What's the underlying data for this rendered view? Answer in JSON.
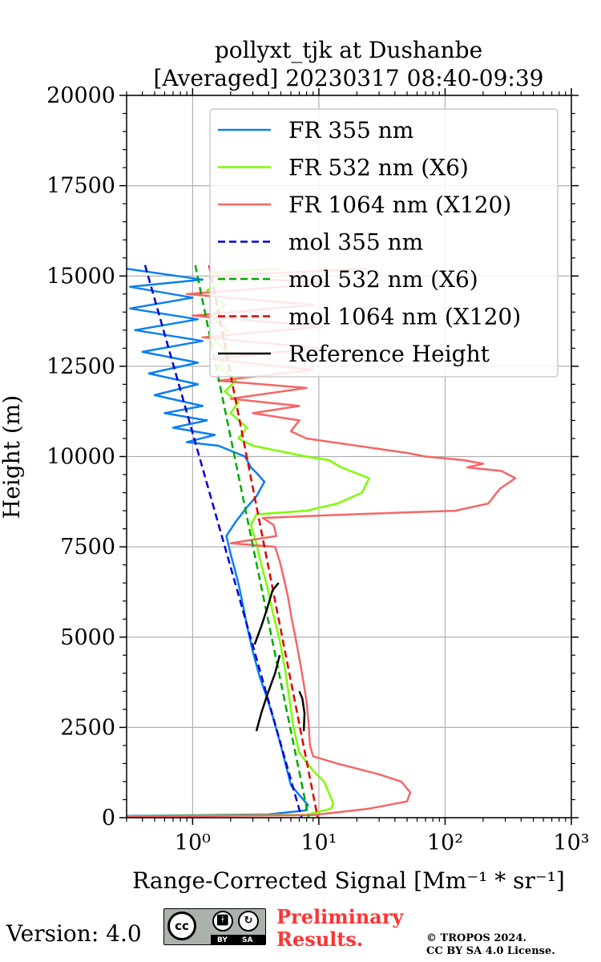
{
  "chart_data": {
    "type": "line",
    "title": [
      "pollyxt_tjk at Dushanbe",
      "[Averaged] 20230317 08:40-09:39"
    ],
    "xlabel": "Range-Corrected Signal [Mm⁻¹ * sr⁻¹]",
    "ylabel": "Height (m)",
    "xscale": "log",
    "xlim": [
      0.3,
      1000
    ],
    "ylim": [
      0,
      20000
    ],
    "xticks": [
      1,
      10,
      100,
      1000
    ],
    "xtick_labels": [
      "10⁰",
      "10¹",
      "10²",
      "10³"
    ],
    "yticks": [
      0,
      2500,
      5000,
      7500,
      10000,
      12500,
      15000,
      17500,
      20000
    ],
    "ytick_labels": [
      "0",
      "2500",
      "5000",
      "7500",
      "10000",
      "12500",
      "15000",
      "17500",
      "20000"
    ],
    "grid": true,
    "legend_position": "top-right",
    "series": [
      {
        "name": "FR 355 nm",
        "color": "#0a7ff0",
        "style": "solid",
        "points": [
          [
            0.3,
            50
          ],
          [
            4,
            90
          ],
          [
            7.8,
            200
          ],
          [
            8.2,
            350
          ],
          [
            6,
            900
          ],
          [
            5,
            2000
          ],
          [
            4.4,
            2700
          ],
          [
            3.9,
            3300
          ],
          [
            3.4,
            3900
          ],
          [
            3,
            4600
          ],
          [
            2.7,
            5300
          ],
          [
            2.5,
            5900
          ],
          [
            2.3,
            6500
          ],
          [
            2.15,
            6900
          ],
          [
            2,
            7300
          ],
          [
            1.85,
            7800
          ],
          [
            2.2,
            8200
          ],
          [
            2.7,
            8600
          ],
          [
            3.2,
            8900
          ],
          [
            3.7,
            9300
          ],
          [
            3.3,
            9500
          ],
          [
            2.9,
            9700
          ],
          [
            2.6,
            10000
          ],
          [
            1.6,
            10300
          ],
          [
            0.9,
            10400
          ],
          [
            1.5,
            10600
          ],
          [
            0.7,
            10800
          ],
          [
            1.3,
            11000
          ],
          [
            0.6,
            11200
          ],
          [
            1.2,
            11400
          ],
          [
            0.5,
            11700
          ],
          [
            1.1,
            12000
          ],
          [
            0.45,
            12300
          ],
          [
            1.1,
            12600
          ],
          [
            0.4,
            12900
          ],
          [
            1.2,
            13200
          ],
          [
            0.35,
            13500
          ],
          [
            1.1,
            13800
          ],
          [
            0.32,
            14100
          ],
          [
            1.0,
            14400
          ],
          [
            0.32,
            14700
          ],
          [
            1.2,
            14900
          ],
          [
            0.3,
            15200
          ]
        ]
      },
      {
        "name": "FR 532 nm (X6)",
        "color": "#7cfc00",
        "style": "solid",
        "points": [
          [
            0.3,
            40
          ],
          [
            8,
            80
          ],
          [
            12.5,
            250
          ],
          [
            13,
            400
          ],
          [
            11,
            1000
          ],
          [
            9,
            1300
          ],
          [
            7,
            1800
          ],
          [
            6.3,
            2500
          ],
          [
            5.9,
            3200
          ],
          [
            5.4,
            4100
          ],
          [
            4.9,
            4900
          ],
          [
            4.3,
            5700
          ],
          [
            3.9,
            6400
          ],
          [
            3.5,
            7000
          ],
          [
            3.2,
            7600
          ],
          [
            2.9,
            8100
          ],
          [
            3.2,
            8400
          ],
          [
            8,
            8500
          ],
          [
            14,
            8700
          ],
          [
            22,
            9000
          ],
          [
            25,
            9400
          ],
          [
            15,
            9700
          ],
          [
            12,
            9900
          ],
          [
            8,
            10000
          ],
          [
            3,
            10300
          ],
          [
            2.3,
            10500
          ],
          [
            2.7,
            10800
          ],
          [
            2.0,
            11200
          ],
          [
            2.3,
            11500
          ],
          [
            1.8,
            11800
          ],
          [
            2.2,
            12100
          ],
          [
            1.6,
            12500
          ],
          [
            2.0,
            12800
          ],
          [
            1.5,
            13200
          ],
          [
            1.9,
            13500
          ],
          [
            1.4,
            13900
          ],
          [
            1.8,
            14200
          ],
          [
            1.3,
            14600
          ],
          [
            1.8,
            14900
          ],
          [
            1.4,
            15100
          ],
          [
            5,
            15200
          ]
        ]
      },
      {
        "name": "FR 1064 nm (X120)",
        "color": "#f56666",
        "style": "solid",
        "points": [
          [
            0.3,
            30
          ],
          [
            9,
            70
          ],
          [
            25,
            250
          ],
          [
            50,
            450
          ],
          [
            53,
            700
          ],
          [
            45,
            1000
          ],
          [
            30,
            1200
          ],
          [
            14,
            1500
          ],
          [
            9,
            1700
          ],
          [
            8.5,
            2000
          ],
          [
            8.3,
            2600
          ],
          [
            8,
            3200
          ],
          [
            7.6,
            3700
          ],
          [
            7.1,
            4300
          ],
          [
            6.6,
            4900
          ],
          [
            6.1,
            5500
          ],
          [
            5.7,
            6100
          ],
          [
            5.3,
            6600
          ],
          [
            4.9,
            7100
          ],
          [
            4.5,
            7500
          ],
          [
            2,
            7600
          ],
          [
            4.6,
            7800
          ],
          [
            4.4,
            8100
          ],
          [
            3.6,
            8300
          ],
          [
            18,
            8400
          ],
          [
            120,
            8500
          ],
          [
            220,
            8700
          ],
          [
            270,
            9100
          ],
          [
            360,
            9400
          ],
          [
            280,
            9600
          ],
          [
            150,
            9700
          ],
          [
            200,
            9800
          ],
          [
            140,
            9900
          ],
          [
            70,
            10000
          ],
          [
            50,
            10100
          ],
          [
            20,
            10300
          ],
          [
            8,
            10500
          ],
          [
            6,
            10700
          ],
          [
            7,
            11000
          ],
          [
            3,
            11200
          ],
          [
            7,
            11400
          ],
          [
            2,
            11600
          ],
          [
            8,
            11900
          ],
          [
            1.6,
            12100
          ],
          [
            9,
            12400
          ],
          [
            1.4,
            12700
          ],
          [
            10,
            13000
          ],
          [
            1.2,
            13300
          ],
          [
            11,
            13600
          ],
          [
            1,
            13900
          ],
          [
            9,
            14200
          ],
          [
            0.9,
            14500
          ],
          [
            12,
            14800
          ],
          [
            1.4,
            15000
          ],
          [
            24,
            15200
          ]
        ]
      },
      {
        "name": "mol 355 nm",
        "color": "#0000dd",
        "style": "dashed",
        "points": [
          [
            0.42,
            15300
          ],
          [
            7.3,
            0
          ]
        ]
      },
      {
        "name": "mol 532 nm (X6)",
        "color": "#00aa00",
        "style": "dashed",
        "points": [
          [
            1.05,
            15300
          ],
          [
            8.3,
            0
          ]
        ]
      },
      {
        "name": "mol 1064 nm (X120)",
        "color": "#dd0000",
        "style": "dashed",
        "points": [
          [
            1.35,
            15300
          ],
          [
            9.8,
            0
          ]
        ]
      },
      {
        "name": "Reference Height",
        "color": "#000000",
        "style": "solid",
        "segments": [
          [
            [
              3.2,
              2400
            ],
            [
              3.5,
              2900
            ],
            [
              3.9,
              3400
            ],
            [
              4.5,
              4000
            ],
            [
              4.9,
              4500
            ]
          ],
          [
            [
              7.6,
              2400
            ],
            [
              7.7,
              2900
            ],
            [
              7.4,
              3300
            ],
            [
              7.0,
              3500
            ]
          ],
          [
            [
              3.1,
              4800
            ],
            [
              3.5,
              5300
            ],
            [
              3.9,
              5800
            ],
            [
              4.3,
              6300
            ],
            [
              4.8,
              6500
            ]
          ]
        ]
      }
    ]
  },
  "footer": {
    "version": "Version: 4.0",
    "license_badge": {
      "icon": "cc-by-sa-icon",
      "by": "BY",
      "sa": "SA",
      "cc": "cc"
    },
    "preliminary": [
      "Preliminary",
      "Results."
    ],
    "copyright": [
      "© TROPOS 2024.",
      "CC BY SA 4.0 License."
    ]
  }
}
